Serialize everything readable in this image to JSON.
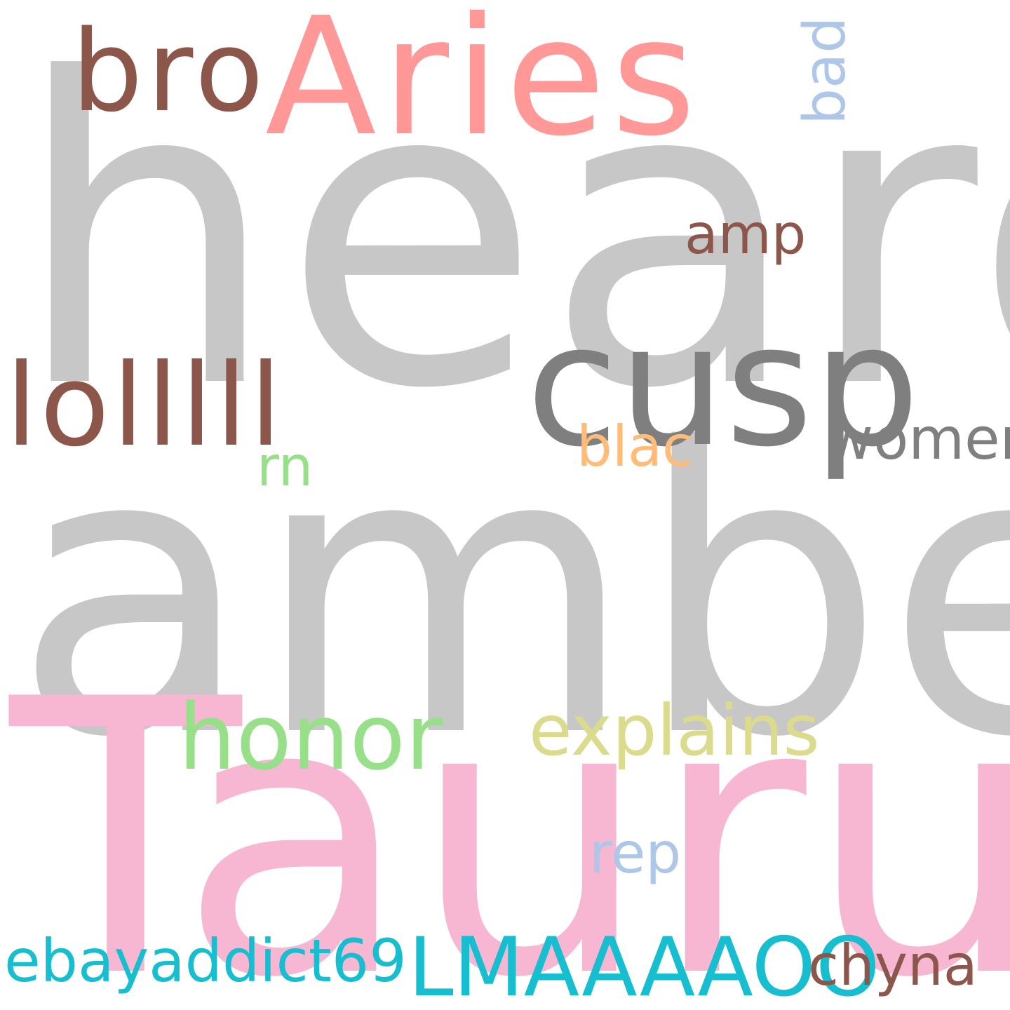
{
  "words": {
    "heard": {
      "text": "heard",
      "color": "#c7c7c7"
    },
    "amber": {
      "text": "amber",
      "color": "#c7c7c7"
    },
    "taurus": {
      "text": "Taurus",
      "color": "#f7b6d2"
    },
    "aries": {
      "text": "Aries",
      "color": "#ff9896"
    },
    "bro": {
      "text": "bro",
      "color": "#8c564b"
    },
    "cusp": {
      "text": "cusp",
      "color": "#7f7f7f"
    },
    "lolllll": {
      "text": "lolllll",
      "color": "#8c564b"
    },
    "amp": {
      "text": "amp",
      "color": "#8c564b"
    },
    "bad": {
      "text": "bad",
      "color": "#aec7e8"
    },
    "women": {
      "text": "women",
      "color": "#7f7f7f"
    },
    "blac": {
      "text": "blac",
      "color": "#ffbb78"
    },
    "rn": {
      "text": "rn",
      "color": "#98df8a"
    },
    "honor": {
      "text": "honor",
      "color": "#98df8a"
    },
    "explains": {
      "text": "explains",
      "color": "#dbdb8d"
    },
    "rep": {
      "text": "rep",
      "color": "#aec7e8"
    },
    "ebayaddict69": {
      "text": "ebayaddict69",
      "color": "#17becf"
    },
    "lmaaaaoo": {
      "text": "LMAAAAOO",
      "color": "#17becf"
    },
    "chyna": {
      "text": "chyna",
      "color": "#8c564b"
    }
  }
}
